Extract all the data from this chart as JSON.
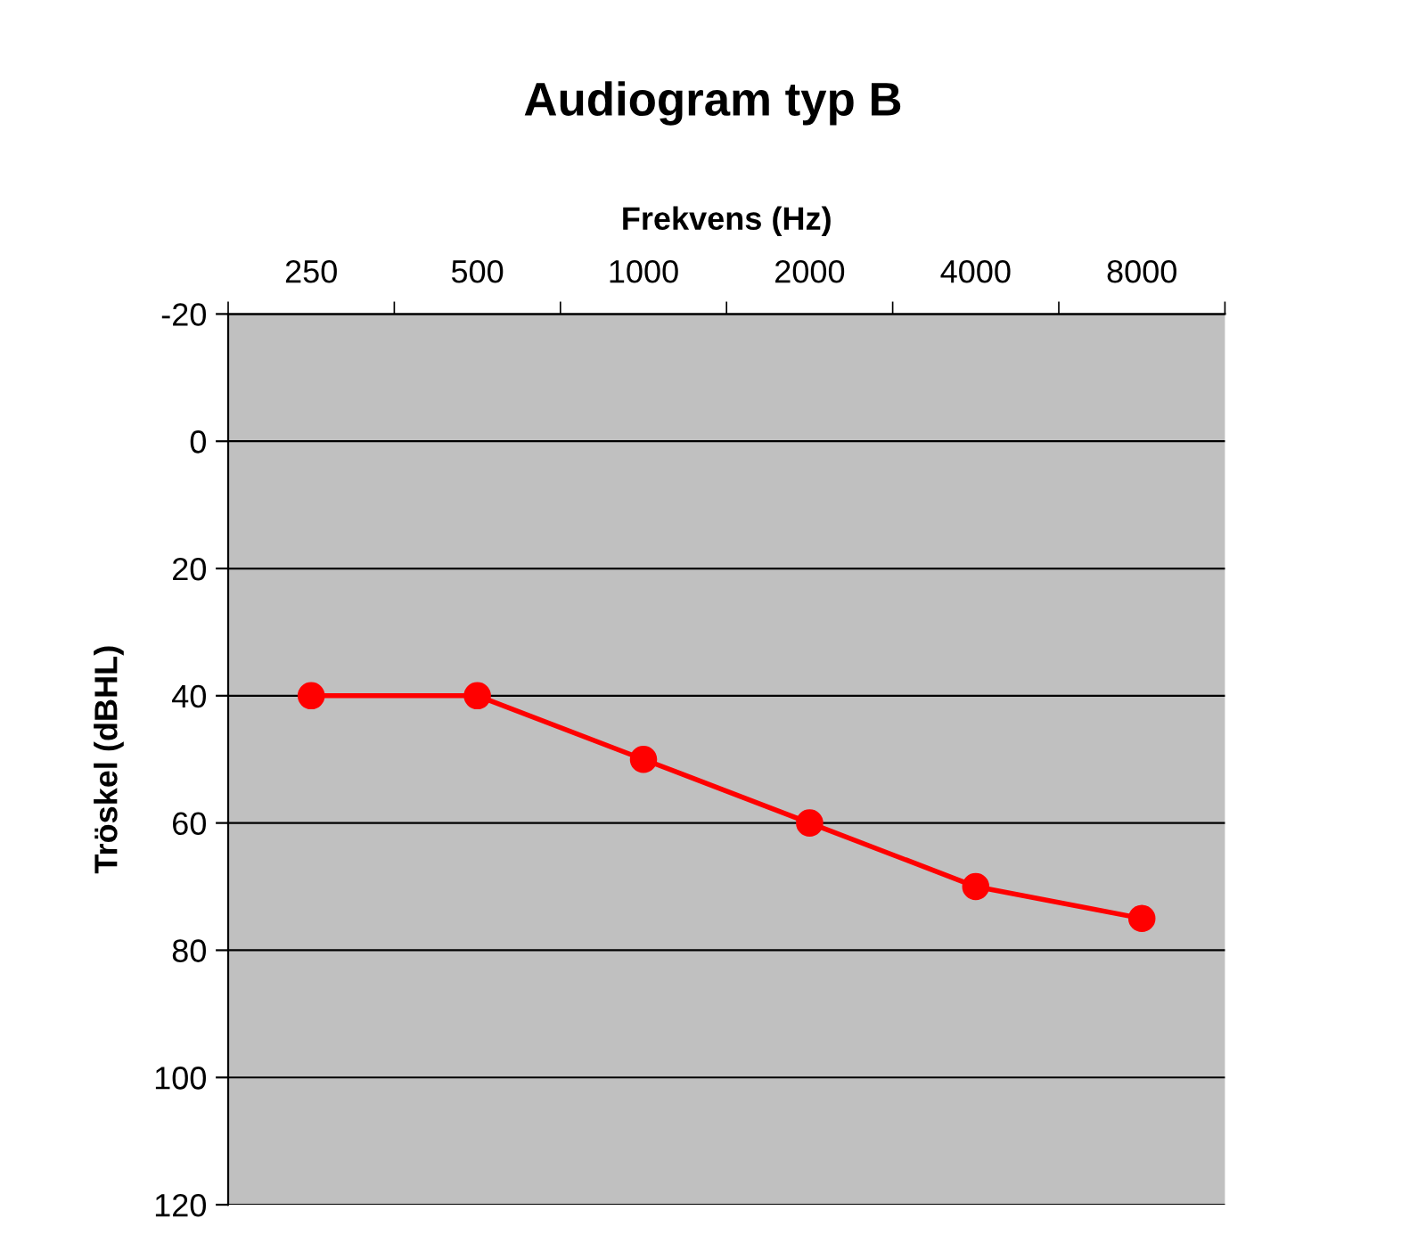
{
  "chart_data": {
    "type": "line",
    "title": "Audiogram typ B",
    "xlabel": "Frekvens (Hz)",
    "ylabel": "Tröskel (dBHL)",
    "categories": [
      "250",
      "500",
      "1000",
      "2000",
      "4000",
      "8000"
    ],
    "series": [
      {
        "color": "#ff0000",
        "values": [
          40,
          40,
          50,
          60,
          70,
          75
        ]
      }
    ],
    "ylim": [
      120,
      -20
    ],
    "yticks": [
      -20,
      0,
      20,
      40,
      60,
      80,
      100,
      120
    ],
    "grid": "y",
    "marker": "circle",
    "line_style": "solid"
  }
}
